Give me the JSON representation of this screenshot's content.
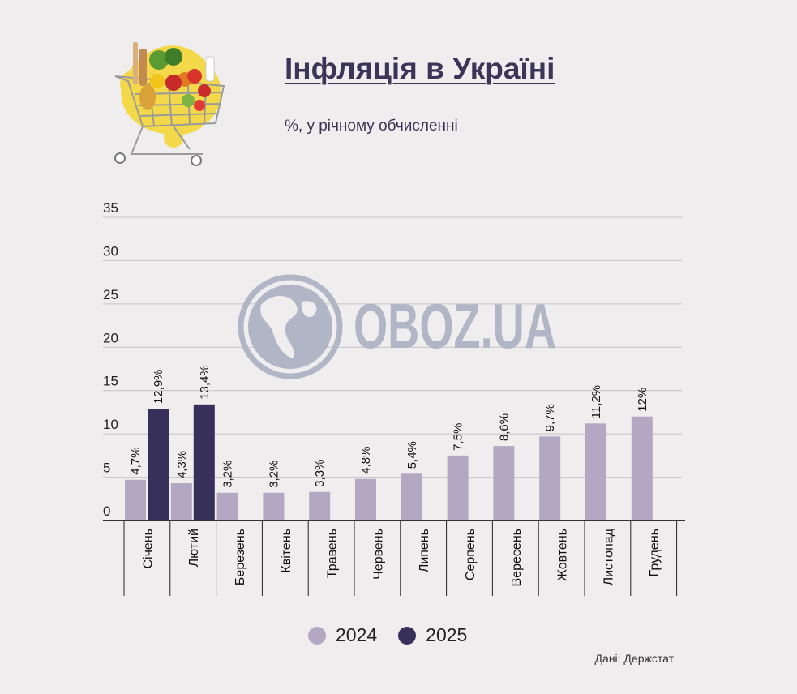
{
  "colors": {
    "y2024": "#b3a7c2",
    "y2025": "#37305a",
    "watermark": "#b0b6c6"
  },
  "header": {
    "title": "Інфляція в Україні",
    "subtitle": "%, у річному обчисленні"
  },
  "watermark": {
    "text": "OBOZ.UA"
  },
  "source": "Дані: Держстат",
  "chart_data": {
    "type": "bar",
    "title": "Інфляція в Україні",
    "subtitle": "%, у річному обчисленні",
    "categories": [
      "Січень",
      "Лютий",
      "Березень",
      "Квітень",
      "Травень",
      "Червень",
      "Липень",
      "Серпень",
      "Вересень",
      "Жовтень",
      "Листопад",
      "Грудень"
    ],
    "series": [
      {
        "name": "2024",
        "values": [
          4.7,
          4.3,
          3.2,
          3.2,
          3.3,
          4.8,
          5.4,
          7.5,
          8.6,
          9.7,
          11.2,
          12
        ],
        "labels": [
          "4,7%",
          "4,3%",
          "3,2%",
          "3,2%",
          "3,3%",
          "4,8%",
          "5,4%",
          "7,5%",
          "8,6%",
          "9,7%",
          "11,2%",
          "12%"
        ]
      },
      {
        "name": "2025",
        "values": [
          12.9,
          13.4,
          null,
          null,
          null,
          null,
          null,
          null,
          null,
          null,
          null,
          null
        ],
        "labels": [
          "12,9%",
          "13,4%",
          null,
          null,
          null,
          null,
          null,
          null,
          null,
          null,
          null,
          null
        ]
      }
    ],
    "ylim": [
      0,
      35
    ],
    "yticks": [
      0,
      5,
      10,
      15,
      20,
      25,
      30,
      35
    ],
    "grid": true,
    "legend": "bottom-center"
  }
}
